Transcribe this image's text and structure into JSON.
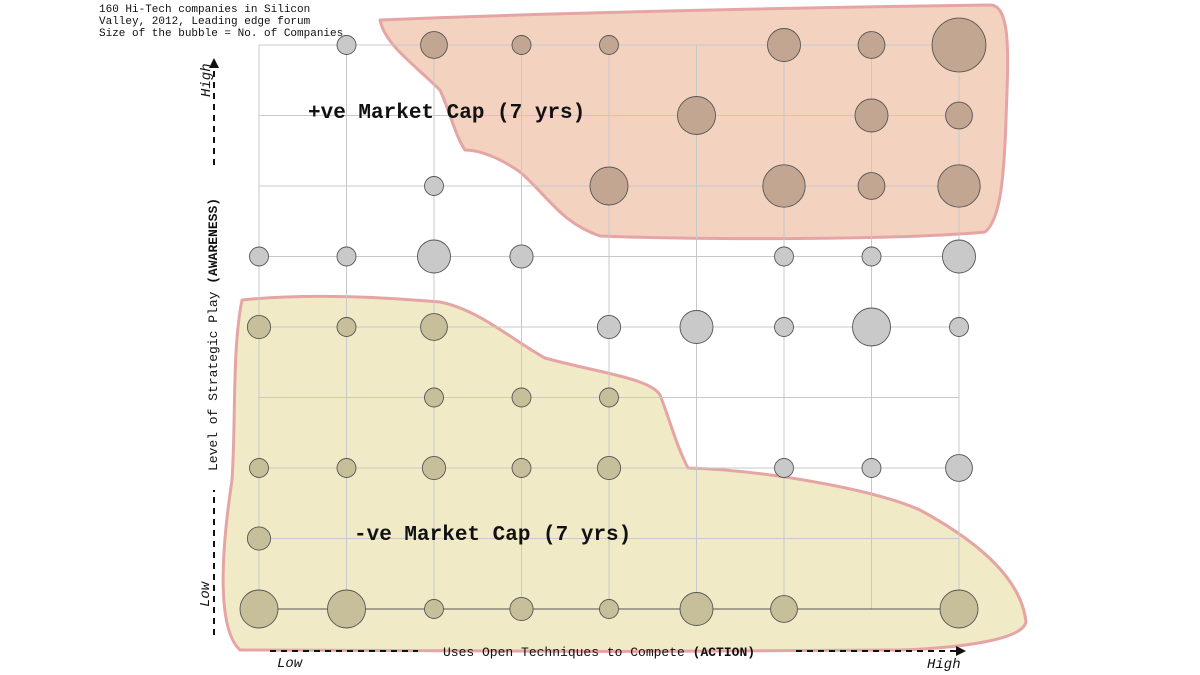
{
  "notes": [
    "160 Hi-Tech companies in Silicon",
    "Valley, 2012, Leading edge forum",
    "Size of the bubble = No. of Companies"
  ],
  "colors": {
    "positive_fill": "#f3d2c0",
    "positive_bubble": "#c3a692",
    "negative_fill": "#f1eac7",
    "negative_bubble": "#c6bf99",
    "neutral_bubble": "#c9c9c9",
    "region_outline": "#e6a5a5",
    "grid": "#c8c8c8"
  },
  "chart_data": {
    "type": "scatter",
    "x_levels": 9,
    "y_levels": 9,
    "x_axis": {
      "label_text": "Uses Open Techniques to Compete ",
      "label_bold": "(ACTION)",
      "low": "Low",
      "high": "High"
    },
    "y_axis": {
      "label_text": "Level of Strategic Play ",
      "label_bold": "(AWARENESS)",
      "low": "Low",
      "high": "High"
    },
    "regions": {
      "positive": "+ve Market Cap (7 yrs)",
      "negative": "-ve Market Cap (7 yrs)"
    },
    "bubbles": [
      {
        "x": 2,
        "y": 9,
        "size": 1,
        "group": "neutral"
      },
      {
        "x": 3,
        "y": 9,
        "size": 2,
        "group": "positive"
      },
      {
        "x": 4,
        "y": 9,
        "size": 1,
        "group": "positive"
      },
      {
        "x": 5,
        "y": 9,
        "size": 1,
        "group": "positive"
      },
      {
        "x": 7,
        "y": 9,
        "size": 3,
        "group": "positive"
      },
      {
        "x": 8,
        "y": 9,
        "size": 2,
        "group": "positive"
      },
      {
        "x": 9,
        "y": 9,
        "size": 8,
        "group": "positive"
      },
      {
        "x": 6,
        "y": 8,
        "size": 4,
        "group": "positive"
      },
      {
        "x": 8,
        "y": 8,
        "size": 3,
        "group": "positive"
      },
      {
        "x": 9,
        "y": 8,
        "size": 2,
        "group": "positive"
      },
      {
        "x": 3,
        "y": 7,
        "size": 1,
        "group": "neutral"
      },
      {
        "x": 5,
        "y": 7,
        "size": 4,
        "group": "positive"
      },
      {
        "x": 7,
        "y": 7,
        "size": 5,
        "group": "positive"
      },
      {
        "x": 8,
        "y": 7,
        "size": 2,
        "group": "positive"
      },
      {
        "x": 9,
        "y": 7,
        "size": 5,
        "group": "positive"
      },
      {
        "x": 1,
        "y": 6,
        "size": 1,
        "group": "neutral"
      },
      {
        "x": 2,
        "y": 6,
        "size": 1,
        "group": "neutral"
      },
      {
        "x": 3,
        "y": 6,
        "size": 3,
        "group": "neutral"
      },
      {
        "x": 4,
        "y": 6,
        "size": 1.5,
        "group": "neutral"
      },
      {
        "x": 7,
        "y": 6,
        "size": 1,
        "group": "neutral"
      },
      {
        "x": 8,
        "y": 6,
        "size": 1,
        "group": "neutral"
      },
      {
        "x": 9,
        "y": 6,
        "size": 3,
        "group": "neutral"
      },
      {
        "x": 1,
        "y": 5,
        "size": 1.5,
        "group": "negative"
      },
      {
        "x": 2,
        "y": 5,
        "size": 1,
        "group": "negative"
      },
      {
        "x": 3,
        "y": 5,
        "size": 2,
        "group": "negative"
      },
      {
        "x": 5,
        "y": 5,
        "size": 1.5,
        "group": "neutral"
      },
      {
        "x": 6,
        "y": 5,
        "size": 3,
        "group": "neutral"
      },
      {
        "x": 7,
        "y": 5,
        "size": 1,
        "group": "neutral"
      },
      {
        "x": 8,
        "y": 5,
        "size": 4,
        "group": "neutral"
      },
      {
        "x": 9,
        "y": 5,
        "size": 1,
        "group": "neutral"
      },
      {
        "x": 3,
        "y": 4,
        "size": 1,
        "group": "negative"
      },
      {
        "x": 4,
        "y": 4,
        "size": 1,
        "group": "negative"
      },
      {
        "x": 5,
        "y": 4,
        "size": 1,
        "group": "negative"
      },
      {
        "x": 1,
        "y": 3,
        "size": 1,
        "group": "negative"
      },
      {
        "x": 2,
        "y": 3,
        "size": 1,
        "group": "negative"
      },
      {
        "x": 3,
        "y": 3,
        "size": 1.5,
        "group": "negative"
      },
      {
        "x": 4,
        "y": 3,
        "size": 1,
        "group": "negative"
      },
      {
        "x": 5,
        "y": 3,
        "size": 1.5,
        "group": "negative"
      },
      {
        "x": 7,
        "y": 3,
        "size": 1,
        "group": "neutral"
      },
      {
        "x": 8,
        "y": 3,
        "size": 1,
        "group": "neutral"
      },
      {
        "x": 9,
        "y": 3,
        "size": 2,
        "group": "neutral"
      },
      {
        "x": 1,
        "y": 2,
        "size": 1.5,
        "group": "negative"
      },
      {
        "x": 1,
        "y": 1,
        "size": 4,
        "group": "negative"
      },
      {
        "x": 2,
        "y": 1,
        "size": 4,
        "group": "negative"
      },
      {
        "x": 3,
        "y": 1,
        "size": 1,
        "group": "negative"
      },
      {
        "x": 4,
        "y": 1,
        "size": 1.5,
        "group": "negative"
      },
      {
        "x": 5,
        "y": 1,
        "size": 1,
        "group": "negative"
      },
      {
        "x": 6,
        "y": 1,
        "size": 3,
        "group": "negative"
      },
      {
        "x": 7,
        "y": 1,
        "size": 2,
        "group": "negative"
      },
      {
        "x": 9,
        "y": 1,
        "size": 4,
        "group": "negative"
      }
    ]
  }
}
